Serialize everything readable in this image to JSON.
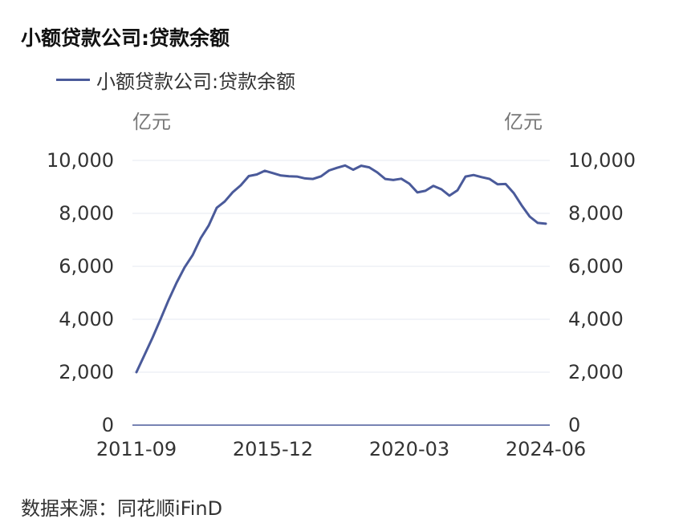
{
  "chart_data": {
    "type": "line",
    "title": "小额贷款公司:贷款余额",
    "legend": [
      "小额贷款公司:贷款余额"
    ],
    "left_unit": "亿元",
    "right_unit": "亿元",
    "source": "数据来源：同花顺iFinD",
    "ylim": [
      0,
      10000
    ],
    "y_ticks": [
      "0",
      "2,000",
      "4,000",
      "6,000",
      "8,000",
      "10,000"
    ],
    "x_tick_labels": [
      "2011-09",
      "2015-12",
      "2020-03",
      "2024-06"
    ],
    "grid": true,
    "legend_position": "top-left",
    "series": [
      {
        "name": "小额贷款公司:贷款余额",
        "color": "#4a5a9a",
        "x": [
          "2011-09",
          "2011-12",
          "2012-03",
          "2012-06",
          "2012-09",
          "2012-12",
          "2013-03",
          "2013-06",
          "2013-09",
          "2013-12",
          "2014-03",
          "2014-06",
          "2014-09",
          "2014-12",
          "2015-03",
          "2015-06",
          "2015-09",
          "2015-12",
          "2016-03",
          "2016-06",
          "2016-09",
          "2016-12",
          "2017-03",
          "2017-06",
          "2017-09",
          "2017-12",
          "2018-03",
          "2018-06",
          "2018-09",
          "2018-12",
          "2019-03",
          "2019-06",
          "2019-09",
          "2019-12",
          "2020-03",
          "2020-06",
          "2020-09",
          "2020-12",
          "2021-03",
          "2021-06",
          "2021-09",
          "2021-12",
          "2022-03",
          "2022-06",
          "2022-09",
          "2022-12",
          "2023-03",
          "2023-06",
          "2023-09",
          "2023-12",
          "2024-03",
          "2024-06"
        ],
        "values": [
          2000,
          2650,
          3300,
          4000,
          4720,
          5380,
          5960,
          6420,
          7060,
          7540,
          8210,
          8450,
          8800,
          9060,
          9410,
          9470,
          9610,
          9520,
          9430,
          9400,
          9390,
          9320,
          9300,
          9400,
          9620,
          9720,
          9810,
          9650,
          9800,
          9740,
          9550,
          9300,
          9260,
          9310,
          9120,
          8790,
          8850,
          9040,
          8910,
          8670,
          8870,
          9390,
          9450,
          9370,
          9300,
          9100,
          9110,
          8770,
          8300,
          7880,
          7640,
          7610
        ]
      }
    ]
  }
}
